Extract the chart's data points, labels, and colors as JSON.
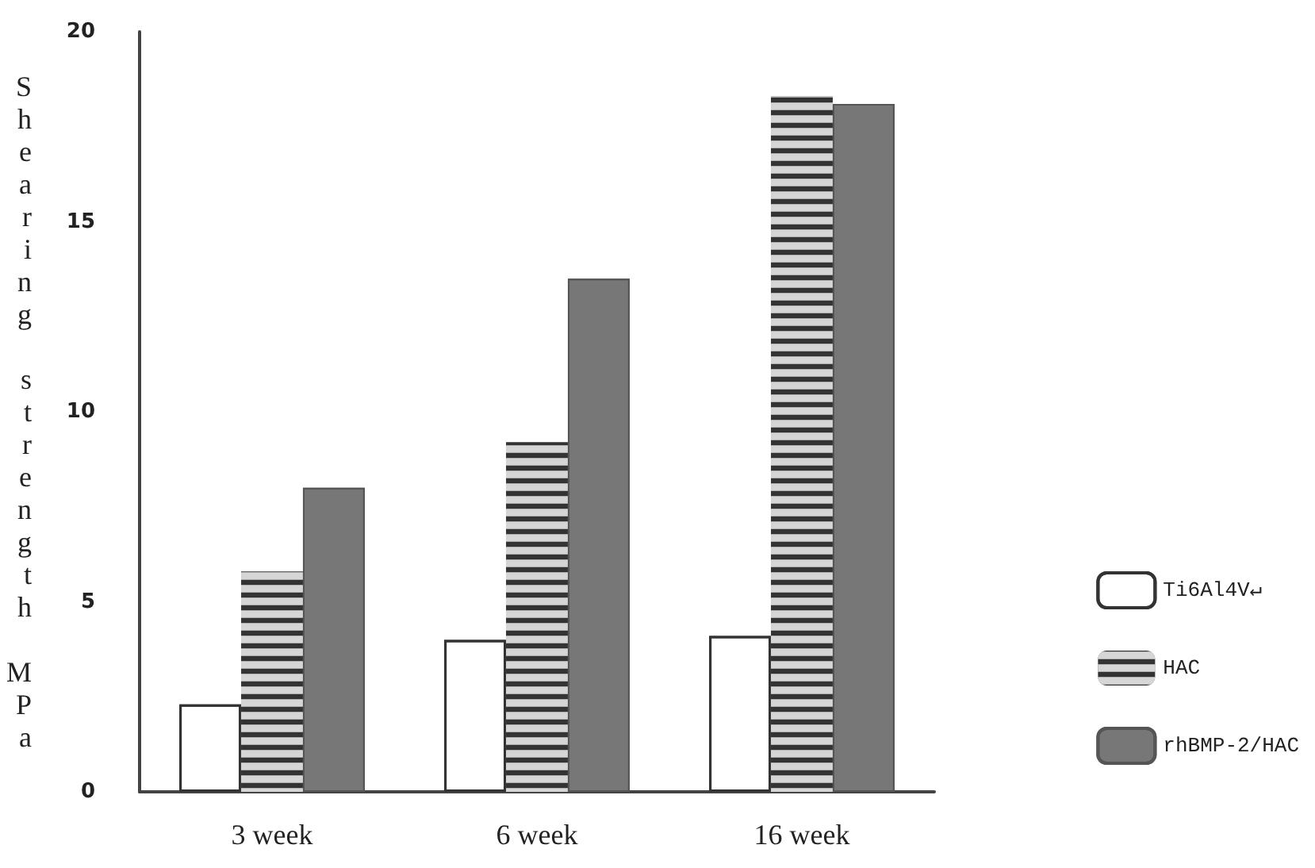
{
  "chart_data": {
    "type": "bar",
    "ylabel": "Shearing strength MPa",
    "categories": [
      "3 week",
      "6 week",
      "16 week"
    ],
    "series": [
      {
        "name": "Ti6Al4V↵",
        "color": "#ffffff",
        "values": [
          2.3,
          4.0,
          4.1
        ]
      },
      {
        "name": "HAC",
        "color": "#333333",
        "values": [
          5.8,
          9.2,
          18.3
        ]
      },
      {
        "name": "rhBMP-2/HAC",
        "color": "#777777",
        "values": [
          8.0,
          13.5,
          18.1
        ]
      }
    ],
    "ylim": [
      0,
      20
    ],
    "yticks": [
      0,
      5,
      10,
      15,
      20
    ],
    "grid": false,
    "legend": "right"
  }
}
